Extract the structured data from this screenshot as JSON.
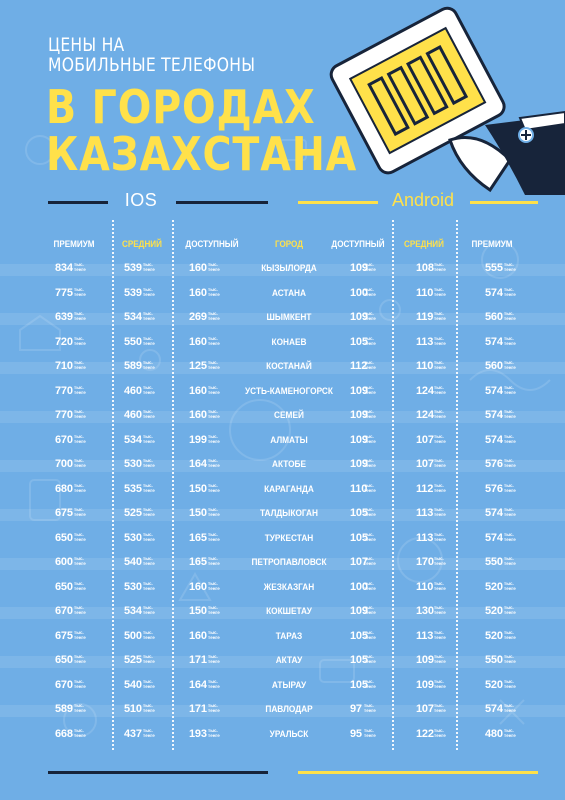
{
  "title": {
    "line1": "ЦЕНЫ НА",
    "line2": "МОБИЛЬНЫЕ ТЕЛЕФОНЫ",
    "line3": "В ГОРОДАХ",
    "line4": "КАЗАХСТАНА"
  },
  "sections": {
    "ios": "IOS",
    "android": "Android"
  },
  "headers": [
    "ПРЕМИУМ",
    "СРЕДНИЙ",
    "ДОСТУПНЫЙ",
    "ГОРОД",
    "ДОСТУПНЫЙ",
    "СРЕДНИЙ",
    "ПРЕМИУМ"
  ],
  "unit": {
    "line1": "тыс.",
    "line2": "тенге"
  },
  "rows": [
    {
      "city": "КЫЗЫЛОРДА",
      "ios_premium": "834",
      "ios_mid": "539",
      "ios_low": "160",
      "and_low": "109",
      "and_mid": "108",
      "and_premium": "555"
    },
    {
      "city": "АСТАНА",
      "ios_premium": "775",
      "ios_mid": "539",
      "ios_low": "160",
      "and_low": "100",
      "and_mid": "110",
      "and_premium": "574"
    },
    {
      "city": "ШЫМКЕНТ",
      "ios_premium": "639",
      "ios_mid": "534",
      "ios_low": "269",
      "and_low": "109",
      "and_mid": "119",
      "and_premium": "560"
    },
    {
      "city": "КОНАЕВ",
      "ios_premium": "720",
      "ios_mid": "550",
      "ios_low": "160",
      "and_low": "105",
      "and_mid": "113",
      "and_premium": "574"
    },
    {
      "city": "КОСТАНАЙ",
      "ios_premium": "710",
      "ios_mid": "589",
      "ios_low": "125",
      "and_low": "112",
      "and_mid": "110",
      "and_premium": "560"
    },
    {
      "city": "УСТЬ-КАМЕНОГОРСК",
      "ios_premium": "770",
      "ios_mid": "460",
      "ios_low": "160",
      "and_low": "109",
      "and_mid": "124",
      "and_premium": "574"
    },
    {
      "city": "СЕМЕЙ",
      "ios_premium": "770",
      "ios_mid": "460",
      "ios_low": "160",
      "and_low": "109",
      "and_mid": "124",
      "and_premium": "574"
    },
    {
      "city": "АЛМАТЫ",
      "ios_premium": "670",
      "ios_mid": "534",
      "ios_low": "199",
      "and_low": "109",
      "and_mid": "107",
      "and_premium": "574"
    },
    {
      "city": "АКТОБЕ",
      "ios_premium": "700",
      "ios_mid": "530",
      "ios_low": "164",
      "and_low": "109",
      "and_mid": "107",
      "and_premium": "576"
    },
    {
      "city": "КАРАГАНДА",
      "ios_premium": "680",
      "ios_mid": "535",
      "ios_low": "150",
      "and_low": "110",
      "and_mid": "112",
      "and_premium": "576"
    },
    {
      "city": "ТАЛДЫКОГАН",
      "ios_premium": "675",
      "ios_mid": "525",
      "ios_low": "150",
      "and_low": "105",
      "and_mid": "113",
      "and_premium": "574"
    },
    {
      "city": "ТУРКЕСТАН",
      "ios_premium": "650",
      "ios_mid": "530",
      "ios_low": "165",
      "and_low": "105",
      "and_mid": "113",
      "and_premium": "574"
    },
    {
      "city": "ПЕТРОПАВЛОВСК",
      "ios_premium": "600",
      "ios_mid": "540",
      "ios_low": "165",
      "and_low": "107",
      "and_mid": "170",
      "and_premium": "550"
    },
    {
      "city": "ЖЕЗКАЗГАН",
      "ios_premium": "650",
      "ios_mid": "530",
      "ios_low": "160",
      "and_low": "100",
      "and_mid": "110",
      "and_premium": "520"
    },
    {
      "city": "КОКШЕТАУ",
      "ios_premium": "670",
      "ios_mid": "534",
      "ios_low": "150",
      "and_low": "109",
      "and_mid": "130",
      "and_premium": "520"
    },
    {
      "city": "ТАРАЗ",
      "ios_premium": "675",
      "ios_mid": "500",
      "ios_low": "160",
      "and_low": "105",
      "and_mid": "113",
      "and_premium": "520"
    },
    {
      "city": "АКТАУ",
      "ios_premium": "650",
      "ios_mid": "525",
      "ios_low": "171",
      "and_low": "105",
      "and_mid": "109",
      "and_premium": "550"
    },
    {
      "city": "АТЫРАУ",
      "ios_premium": "670",
      "ios_mid": "540",
      "ios_low": "164",
      "and_low": "105",
      "and_mid": "109",
      "and_premium": "520"
    },
    {
      "city": "ПАВЛОДАР",
      "ios_premium": "589",
      "ios_mid": "510",
      "ios_low": "171",
      "and_low": "97",
      "and_mid": "107",
      "and_premium": "574"
    },
    {
      "city": "УРАЛЬСК",
      "ios_premium": "668",
      "ios_mid": "437",
      "ios_low": "193",
      "and_low": "95",
      "and_mid": "122",
      "and_premium": "480"
    }
  ],
  "colors": {
    "background": "#6faee6",
    "accent_yellow": "#ffe14a",
    "dark_navy": "#17243a",
    "white": "#ffffff"
  },
  "illustration": {
    "icon": "hand-holding-phone-icon"
  }
}
